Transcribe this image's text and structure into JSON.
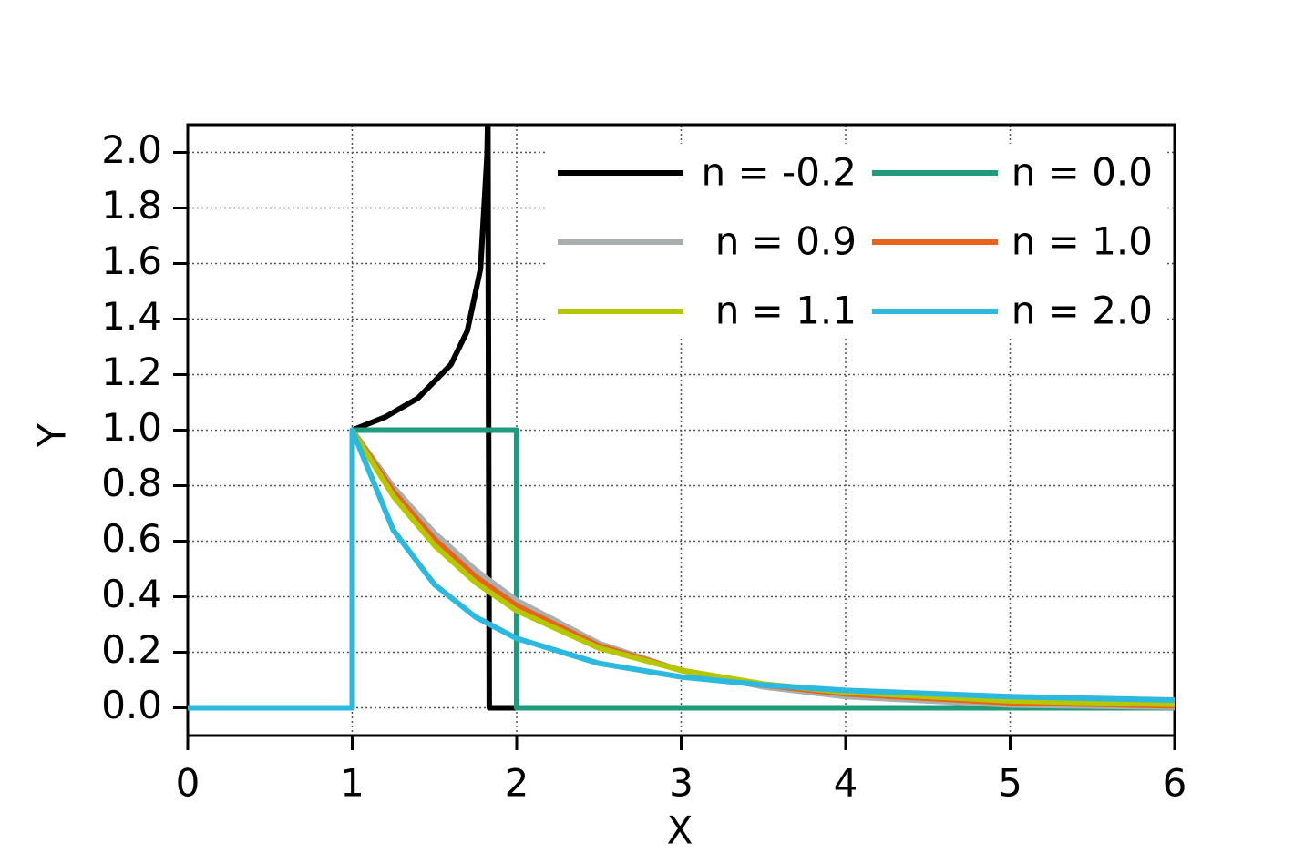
{
  "chart_data": {
    "type": "line",
    "x_label": "X",
    "y_label": "Y",
    "xlim": [
      0,
      6
    ],
    "ylim": [
      -0.1,
      2.1
    ],
    "xticks": [
      0,
      1,
      2,
      3,
      4,
      5,
      6
    ],
    "yticks": [
      {
        "value": 0,
        "label": "0.0"
      },
      {
        "value": 0.2,
        "label": "0.2"
      },
      {
        "value": 0.4,
        "label": "0.4"
      },
      {
        "value": 0.6,
        "label": "0.6"
      },
      {
        "value": 0.8,
        "label": "0.8"
      },
      {
        "value": 1,
        "label": "1.0"
      },
      {
        "value": 1.2,
        "label": "1.2"
      },
      {
        "value": 1.4,
        "label": "1.4"
      },
      {
        "value": 1.6,
        "label": "1.6"
      },
      {
        "value": 1.8,
        "label": "1.8"
      },
      {
        "value": 2,
        "label": "2.0"
      }
    ],
    "grid": true,
    "series": [
      {
        "name": "n = -0.2",
        "color": "#000000",
        "x": [
          0,
          1,
          1,
          1.2,
          1.4,
          1.6,
          1.7,
          1.78,
          1.82,
          1.825,
          1.833,
          6
        ],
        "values": [
          0,
          0,
          1,
          1.047,
          1.115,
          1.236,
          1.357,
          1.581,
          1.992,
          2.154,
          0,
          0
        ]
      },
      {
        "name": "n = 0.0",
        "color": "#1f9a7a",
        "x": [
          0,
          1,
          1,
          2,
          2,
          6
        ],
        "values": [
          0,
          0,
          1,
          1,
          0,
          0
        ]
      },
      {
        "name": "n = 0.9",
        "color": "#a9aeae",
        "x": [
          0,
          1,
          1,
          1.25,
          1.5,
          1.75,
          2,
          2.5,
          3,
          3.5,
          4,
          5,
          6
        ],
        "values": [
          0,
          0,
          1,
          0.796,
          0.63,
          0.496,
          0.387,
          0.232,
          0.134,
          0.075,
          0.04,
          0.01,
          0.002
        ]
      },
      {
        "name": "n = 1.0",
        "color": "#e8641b",
        "x": [
          0,
          1,
          1,
          1.25,
          1.5,
          1.75,
          2,
          2.5,
          3,
          3.5,
          4,
          5,
          6
        ],
        "values": [
          0,
          0,
          1,
          0.779,
          0.607,
          0.472,
          0.368,
          0.223,
          0.135,
          0.082,
          0.05,
          0.018,
          0.007
        ]
      },
      {
        "name": "n = 1.1",
        "color": "#b5c700",
        "x": [
          0,
          1,
          1,
          1.25,
          1.5,
          1.75,
          2,
          2.5,
          3,
          3.5,
          4,
          5,
          6
        ],
        "values": [
          0,
          0,
          1,
          0.762,
          0.585,
          0.451,
          0.35,
          0.215,
          0.135,
          0.086,
          0.056,
          0.025,
          0.012
        ]
      },
      {
        "name": "n = 2.0",
        "color": "#2bb9e0",
        "x": [
          0,
          1,
          1,
          1.25,
          1.5,
          1.75,
          2,
          2.5,
          3,
          3.5,
          4,
          5,
          6
        ],
        "values": [
          0,
          0,
          1,
          0.64,
          0.444,
          0.327,
          0.25,
          0.16,
          0.111,
          0.082,
          0.0625,
          0.04,
          0.028
        ]
      }
    ]
  }
}
